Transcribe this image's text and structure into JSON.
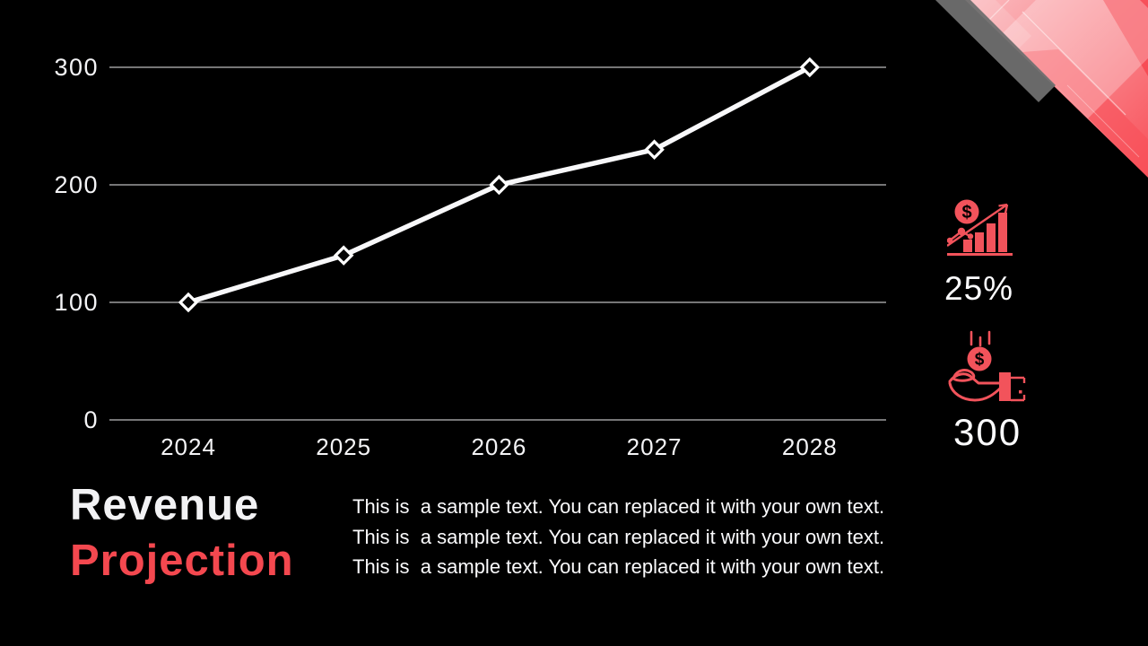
{
  "slide": {
    "background_color": "#000000",
    "accent_red": "#f4484f",
    "icon_red": "#f2535b",
    "text_white": "#fbfbfd"
  },
  "chart_data": {
    "type": "line",
    "categories": [
      "2024",
      "2025",
      "2026",
      "2027",
      "2028"
    ],
    "series": [
      {
        "name": "Revenue",
        "values": [
          100,
          140,
          200,
          230,
          300
        ]
      }
    ],
    "ylim": [
      0,
      300
    ],
    "yticks": [
      0,
      100,
      200,
      300
    ],
    "grid": "horizontal gridlines at each y tick",
    "legend": "none",
    "line_color": "#ffffff",
    "marker": "diamond-outline",
    "xlabel": "",
    "ylabel": ""
  },
  "stats": [
    {
      "icon": "growth-chart-dollar-icon",
      "value": "25%"
    },
    {
      "icon": "hand-receiving-money-icon",
      "value": "300"
    }
  ],
  "footer": {
    "title_line1": "Revenue",
    "title_line2": "Projection",
    "body_lines": [
      "This is  a sample text. You can replaced it with your own text.",
      "This is  a sample text. You can replaced it with your own text.",
      "This is  a sample text. You can replaced it with your own text."
    ]
  }
}
